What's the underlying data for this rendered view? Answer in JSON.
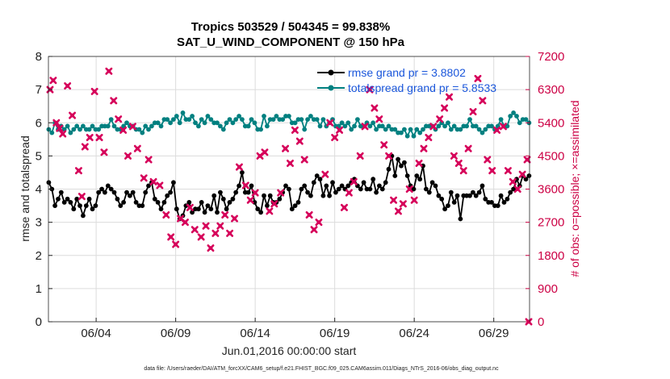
{
  "chart_data": {
    "type": "line",
    "title": "Tropics 503529 / 504345 = 99.838%",
    "subtitle": "SAT_U_WIND_COMPONENT @ 150 hPa",
    "xlabel": "Jun.01,2016 00:00:00 start",
    "ylabel": "rmse and totalspread",
    "y2label": "# of obs: o=possible; ×=assimilated",
    "xlim": [
      1,
      31.25
    ],
    "ylim": [
      0,
      8
    ],
    "y2lim": [
      0,
      7200
    ],
    "x_tick_values": [
      4,
      9,
      14,
      19,
      24,
      29
    ],
    "x_tick_labels": [
      "06/04",
      "06/09",
      "06/14",
      "06/19",
      "06/24",
      "06/29"
    ],
    "y_ticks": [
      0,
      1,
      2,
      3,
      4,
      5,
      6,
      7,
      8
    ],
    "y2_ticks": [
      0,
      900,
      1800,
      2700,
      3600,
      4500,
      5400,
      6300,
      7200
    ],
    "grid": true,
    "legend_position": "top-right",
    "footer": "data file: /Users/raeder/DAI/ATM_forcXX/CAM6_setup/f.e21.FHIST_BGC.f09_025.CAM6assim.011/Diags_NTrS_2016-06/obs_diag_output.nc",
    "colors": {
      "rmse": "#000000",
      "spread": "#008080",
      "obs": "#d6005a",
      "right_axis": "#cc0044",
      "legend_text": "#1a56db"
    },
    "series": [
      {
        "name": "rmse grand pr = 3.8802",
        "axis": "left",
        "marker": "circle",
        "values": [
          4.2,
          4.0,
          3.5,
          3.7,
          3.9,
          3.6,
          3.7,
          3.6,
          3.4,
          3.7,
          3.5,
          3.2,
          3.5,
          3.7,
          3.4,
          3.5,
          3.9,
          4.0,
          3.9,
          4.1,
          4.0,
          3.9,
          3.7,
          3.5,
          3.6,
          3.9,
          3.8,
          3.9,
          3.6,
          3.5,
          3.5,
          3.9,
          4.1,
          4.2,
          3.7,
          3.6,
          3.4,
          3.6,
          3.8,
          3.9,
          4.2,
          3.4,
          3.1,
          3.2,
          3.5,
          3.6,
          3.3,
          3.4,
          3.4,
          3.6,
          3.3,
          3.5,
          3.4,
          3.8,
          3.3,
          3.9,
          3.7,
          3.4,
          3.6,
          3.7,
          3.9,
          4.1,
          4.5,
          3.9,
          3.9,
          4.1,
          3.6,
          3.4,
          3.3,
          3.8,
          3.5,
          3.8,
          3.6,
          3.6,
          3.7,
          3.9,
          4.1,
          4.0,
          3.4,
          3.5,
          3.6,
          4.0,
          4.1,
          3.9,
          3.8,
          4.2,
          4.4,
          4.3,
          3.8,
          4.1,
          3.8,
          4.2,
          3.9,
          4.0,
          4.1,
          4.0,
          4.1,
          4.2,
          4.3,
          4.1,
          4.0,
          4.2,
          4.0,
          4.0,
          4.3,
          3.9,
          4.1,
          4.0,
          4.2,
          4.6,
          5.0,
          4.4,
          4.9,
          4.7,
          4.8,
          4.4,
          4.1,
          4.0,
          4.4,
          4.3,
          4.7,
          4.0,
          3.9,
          4.2,
          4.1,
          3.8,
          3.7,
          3.4,
          3.5,
          3.9,
          3.6,
          3.8,
          3.1,
          3.8,
          3.8,
          3.8,
          3.9,
          3.8,
          3.9,
          4.1,
          3.7,
          3.6,
          3.6,
          3.5,
          3.5,
          3.8,
          3.6,
          3.7,
          3.9,
          4.0,
          4.3,
          4.1,
          4.4,
          4.3,
          4.4
        ]
      },
      {
        "name": "totalspread grand pr = 5.8533",
        "axis": "left",
        "marker": "circle",
        "values": [
          5.8,
          5.7,
          6.0,
          5.8,
          5.9,
          5.8,
          5.9,
          5.7,
          5.8,
          5.9,
          5.8,
          5.9,
          5.8,
          5.8,
          5.9,
          5.8,
          5.8,
          5.9,
          5.9,
          5.9,
          6.1,
          5.9,
          5.8,
          5.8,
          5.9,
          6.0,
          5.9,
          5.9,
          5.8,
          5.8,
          5.7,
          5.9,
          5.8,
          5.9,
          6.0,
          6.0,
          5.9,
          6.1,
          6.1,
          6.0,
          6.1,
          6.2,
          6.0,
          6.3,
          6.1,
          6.1,
          6.2,
          6.0,
          5.9,
          6.1,
          6.0,
          6.2,
          6.1,
          6.0,
          6.0,
          5.9,
          5.8,
          6.0,
          6.1,
          6.0,
          6.1,
          6.2,
          6.1,
          5.9,
          5.9,
          6.1,
          6.0,
          5.8,
          5.8,
          6.2,
          5.9,
          6.1,
          6.1,
          6.2,
          6.1,
          6.1,
          6.2,
          6.2,
          6.0,
          6.0,
          6.1,
          6.1,
          5.8,
          6.1,
          6.2,
          6.1,
          6.1,
          5.9,
          6.1,
          5.9,
          6.0,
          6.1,
          5.9,
          5.9,
          6.0,
          5.9,
          6.0,
          5.8,
          5.9,
          6.1,
          5.9,
          5.9,
          6.0,
          5.9,
          6.0,
          5.8,
          5.9,
          5.9,
          5.8,
          5.9,
          5.8,
          5.8,
          5.7,
          5.7,
          5.8,
          5.6,
          5.8,
          5.6,
          5.8,
          5.7,
          5.8,
          5.9,
          5.9,
          5.9,
          5.8,
          5.9,
          6.0,
          5.9,
          6.0,
          5.8,
          5.9,
          5.8,
          5.8,
          5.9,
          5.9,
          6.1,
          5.9,
          5.9,
          5.8,
          5.7,
          5.8,
          5.9,
          5.9,
          5.8,
          5.9,
          6.1,
          5.9,
          5.9,
          6.2,
          6.3,
          6.2,
          6.0,
          6.1,
          6.1,
          6.0
        ]
      },
      {
        "name": "assimilated",
        "axis": "right",
        "marker": "x",
        "points": [
          [
            1.1,
            6300
          ],
          [
            1.3,
            6550
          ],
          [
            1.5,
            5400
          ],
          [
            1.7,
            5250
          ],
          [
            1.9,
            5100
          ],
          [
            2.2,
            6400
          ],
          [
            2.5,
            5600
          ],
          [
            2.9,
            4100
          ],
          [
            3.1,
            3400
          ],
          [
            3.3,
            4750
          ],
          [
            3.6,
            5000
          ],
          [
            3.9,
            6250
          ],
          [
            4.2,
            5000
          ],
          [
            4.5,
            4600
          ],
          [
            4.8,
            6800
          ],
          [
            5.1,
            6000
          ],
          [
            5.4,
            5500
          ],
          [
            5.7,
            5200
          ],
          [
            6.0,
            4500
          ],
          [
            6.3,
            5300
          ],
          [
            6.6,
            4700
          ],
          [
            7.0,
            3900
          ],
          [
            7.3,
            4400
          ],
          [
            7.6,
            3800
          ],
          [
            8.0,
            3700
          ],
          [
            8.4,
            2900
          ],
          [
            8.7,
            2300
          ],
          [
            9.0,
            2100
          ],
          [
            9.3,
            2800
          ],
          [
            9.6,
            2700
          ],
          [
            9.9,
            3100
          ],
          [
            10.2,
            2500
          ],
          [
            10.6,
            2300
          ],
          [
            10.9,
            2600
          ],
          [
            11.2,
            2000
          ],
          [
            11.5,
            2400
          ],
          [
            11.8,
            2600
          ],
          [
            12.1,
            2900
          ],
          [
            12.4,
            2400
          ],
          [
            12.7,
            2800
          ],
          [
            13.0,
            4200
          ],
          [
            13.4,
            3700
          ],
          [
            13.7,
            3300
          ],
          [
            14.0,
            3500
          ],
          [
            14.3,
            4500
          ],
          [
            14.6,
            4600
          ],
          [
            14.9,
            3000
          ],
          [
            15.2,
            3200
          ],
          [
            15.6,
            3500
          ],
          [
            15.9,
            4700
          ],
          [
            16.2,
            4300
          ],
          [
            16.5,
            5200
          ],
          [
            16.8,
            4900
          ],
          [
            17.1,
            4400
          ],
          [
            17.4,
            2900
          ],
          [
            17.7,
            2500
          ],
          [
            18.0,
            2700
          ],
          [
            18.4,
            4000
          ],
          [
            18.7,
            5400
          ],
          [
            19.0,
            5000
          ],
          [
            19.3,
            5200
          ],
          [
            19.6,
            3100
          ],
          [
            19.9,
            3500
          ],
          [
            20.2,
            3800
          ],
          [
            20.6,
            4500
          ],
          [
            20.9,
            5300
          ],
          [
            21.2,
            6300
          ],
          [
            21.5,
            5800
          ],
          [
            21.8,
            5500
          ],
          [
            22.1,
            4800
          ],
          [
            22.4,
            4500
          ],
          [
            22.7,
            3300
          ],
          [
            23.0,
            3000
          ],
          [
            23.3,
            3200
          ],
          [
            23.7,
            3600
          ],
          [
            24.0,
            3300
          ],
          [
            24.3,
            4300
          ],
          [
            24.6,
            4700
          ],
          [
            24.9,
            5000
          ],
          [
            25.2,
            5300
          ],
          [
            25.6,
            5500
          ],
          [
            25.9,
            5800
          ],
          [
            26.2,
            6100
          ],
          [
            26.5,
            4500
          ],
          [
            26.8,
            4300
          ],
          [
            27.1,
            4100
          ],
          [
            27.4,
            4700
          ],
          [
            27.7,
            5700
          ],
          [
            28.0,
            6600
          ],
          [
            28.3,
            6000
          ],
          [
            28.6,
            4400
          ],
          [
            28.9,
            4100
          ],
          [
            29.2,
            5200
          ],
          [
            29.6,
            5300
          ],
          [
            29.9,
            4100
          ],
          [
            30.2,
            3800
          ],
          [
            30.5,
            3600
          ],
          [
            30.8,
            4000
          ],
          [
            31.1,
            4400
          ],
          [
            31.2,
            0
          ]
        ]
      }
    ]
  }
}
